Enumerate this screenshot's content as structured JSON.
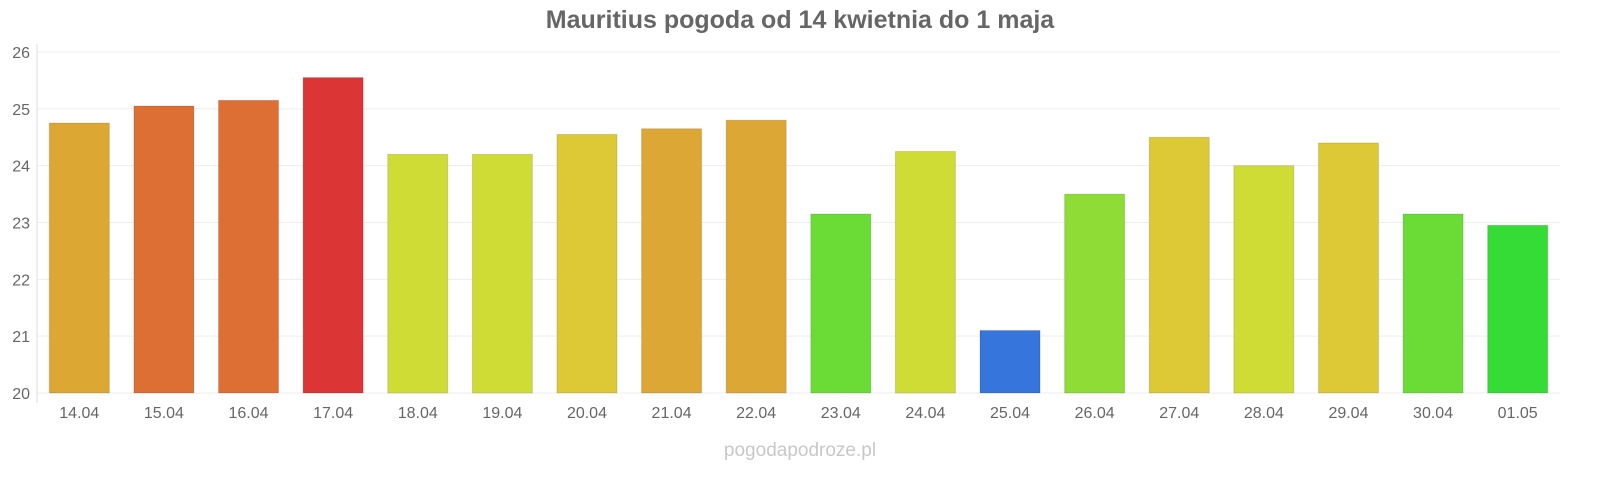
{
  "chart_data": {
    "type": "bar",
    "title": "Mauritius pogoda od 14 kwietnia do 1 maja",
    "xlabel": "",
    "ylabel": "",
    "ylim": [
      20,
      26
    ],
    "yticks": [
      20,
      21,
      22,
      23,
      24,
      25,
      26
    ],
    "grid": true,
    "categories": [
      "14.04",
      "15.04",
      "16.04",
      "17.04",
      "18.04",
      "19.04",
      "20.04",
      "21.04",
      "22.04",
      "23.04",
      "24.04",
      "25.04",
      "26.04",
      "27.04",
      "28.04",
      "29.04",
      "30.04",
      "01.05"
    ],
    "values": [
      24.75,
      25.05,
      25.15,
      25.55,
      24.2,
      24.2,
      24.55,
      24.65,
      24.8,
      23.15,
      24.25,
      21.1,
      23.5,
      24.5,
      24.0,
      24.4,
      23.15,
      22.95
    ],
    "colors": [
      "#dca732",
      "#dd6f35",
      "#dd6f35",
      "#dc3535",
      "#cfdc35",
      "#cfdc35",
      "#dcc935",
      "#dca735",
      "#dca735",
      "#6bdc35",
      "#cfdc35",
      "#3575dc",
      "#8edc35",
      "#dcc935",
      "#cfdc35",
      "#dcc935",
      "#6bdc35",
      "#35dc35"
    ]
  },
  "footer": "pogodapodroze.pl"
}
